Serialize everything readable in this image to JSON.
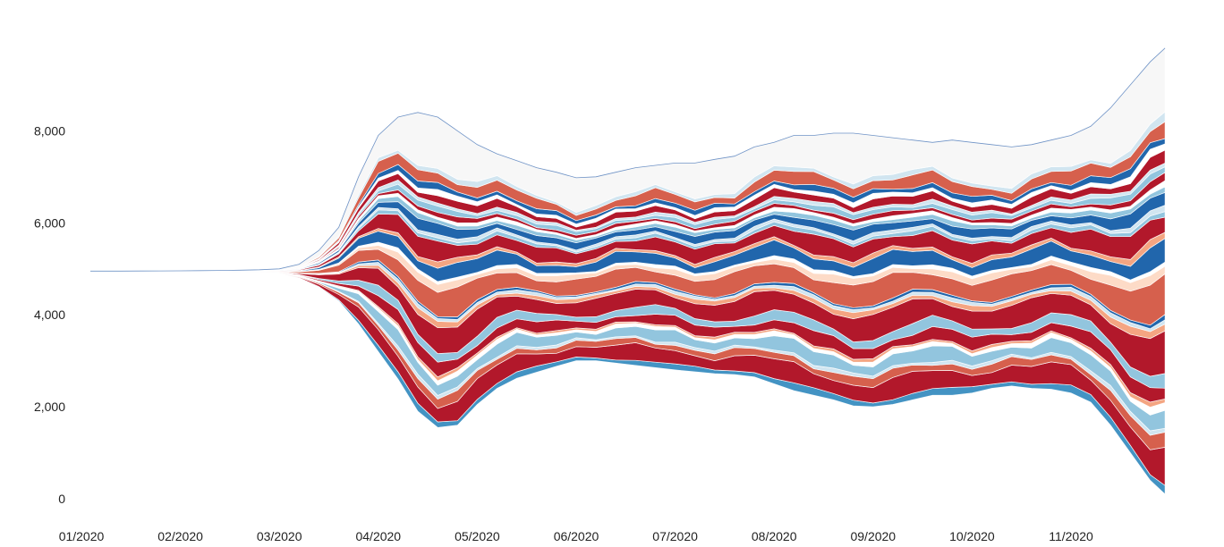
{
  "chart_data": {
    "type": "area",
    "subtype": "streamgraph",
    "x_ticks": [
      "01/2020",
      "02/2020",
      "03/2020",
      "04/2020",
      "05/2020",
      "06/2020",
      "07/2020",
      "08/2020",
      "09/2020",
      "10/2020",
      "11/2020"
    ],
    "y_ticks": [
      "0",
      "2,000",
      "4,000",
      "6,000",
      "8,000"
    ],
    "ylim": [
      0,
      9900
    ],
    "grid": false,
    "legend": "none",
    "baseline_month": 1.09,
    "baseline_value": 4950,
    "x_months": [
      1.0,
      1.2,
      1.4,
      1.6,
      1.8,
      2.0,
      2.2,
      2.4,
      2.6,
      2.8,
      3.0,
      3.2,
      3.4,
      3.6,
      3.8,
      4.0,
      4.2,
      4.4,
      4.6,
      4.8,
      5.0,
      5.2,
      5.4,
      5.6,
      5.8,
      6.0,
      6.2,
      6.4,
      6.6,
      6.8,
      7.0,
      7.2,
      7.4,
      7.6,
      7.8,
      8.0,
      8.2,
      8.4,
      8.6,
      8.8,
      9.0,
      9.2,
      9.4,
      9.6,
      9.8,
      10.0,
      10.2,
      10.4,
      10.6,
      10.8,
      11.0,
      11.2,
      11.4,
      11.6,
      11.8,
      11.95
    ],
    "lower_boundary": [
      4950,
      4950,
      4949,
      4947,
      4945,
      4943,
      4940,
      4935,
      4930,
      4920,
      4900,
      4800,
      4600,
      4300,
      3800,
      3200,
      2600,
      1900,
      1550,
      1600,
      2050,
      2400,
      2620,
      2750,
      2880,
      3000,
      3000,
      2950,
      2900,
      2850,
      2800,
      2760,
      2720,
      2700,
      2650,
      2500,
      2350,
      2250,
      2150,
      2020,
      2000,
      2050,
      2150,
      2250,
      2250,
      2300,
      2400,
      2450,
      2400,
      2380,
      2300,
      2100,
      1600,
      1000,
      400,
      100
    ],
    "upper_boundary": [
      4950,
      4950,
      4951,
      4953,
      4955,
      4957,
      4960,
      4965,
      4970,
      4980,
      5000,
      5100,
      5400,
      5900,
      7000,
      7900,
      8300,
      8400,
      8300,
      8000,
      7700,
      7500,
      7350,
      7200,
      7100,
      6980,
      7000,
      7100,
      7200,
      7250,
      7300,
      7300,
      7380,
      7450,
      7650,
      7750,
      7900,
      7900,
      7950,
      7950,
      7900,
      7850,
      7800,
      7750,
      7800,
      7750,
      7700,
      7650,
      7700,
      7800,
      7900,
      8100,
      8500,
      9000,
      9500,
      9800
    ],
    "series_weights": [
      1.2,
      3.5,
      1.5,
      0.6,
      2.4,
      0.8,
      0.5,
      2.2,
      1.8,
      4.2,
      0.9,
      0.6,
      0.5,
      4.0,
      1.2,
      0.6,
      2.5,
      0.8,
      3.0,
      0.7,
      0.6,
      1.6,
      0.8,
      0.6,
      0.8,
      0.9,
      0.6,
      1.4,
      0.8,
      1.0,
      2.1,
      0.9,
      7.5
    ],
    "series_colors": [
      "#4393c3",
      "#b2182b",
      "#d6604d",
      "#d1e5f0",
      "#92c5de",
      "#ffffff",
      "#f4a582",
      "#b2182b",
      "#92c5de",
      "#b2182b",
      "#f4a582",
      "#d1e5f0",
      "#2166ac",
      "#d6604d",
      "#fddbc7",
      "#ffffff",
      "#2166ac",
      "#f4a582",
      "#b2182b",
      "#92c5de",
      "#d1e5f0",
      "#2166ac",
      "#92c5de",
      "#ffffff",
      "#b2182b",
      "#92c5de",
      "#d1e5f0",
      "#b2182b",
      "#ffffff",
      "#2166ac",
      "#d6604d",
      "#d1e5f0",
      "#f7f7f7"
    ]
  }
}
